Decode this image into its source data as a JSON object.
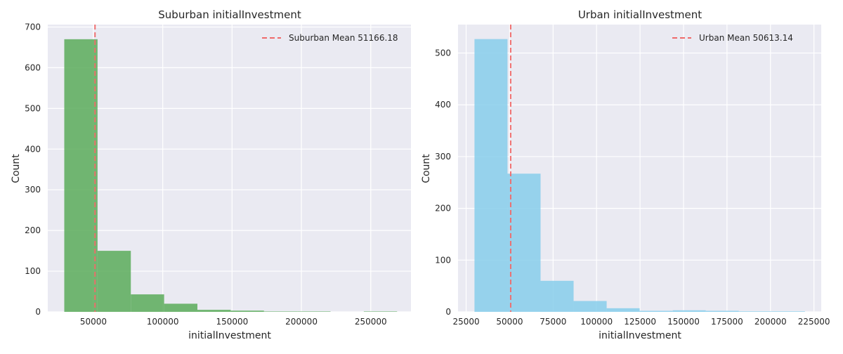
{
  "chart_data": [
    {
      "type": "bar",
      "title": "Suburban initialInvestment",
      "xlabel": "initialInvestment",
      "ylabel": "Count",
      "xlim": [
        17100,
        279000
      ],
      "ylim": [
        0,
        706
      ],
      "xticks": [
        50000,
        100000,
        150000,
        200000,
        250000
      ],
      "yticks": [
        0,
        100,
        200,
        300,
        400,
        500,
        600,
        700
      ],
      "grid": true,
      "legend_position": "top-right",
      "bar_color": "#5aac5a",
      "bins": [
        {
          "x0": 29000,
          "x1": 53000,
          "count": 670
        },
        {
          "x0": 53000,
          "x1": 77000,
          "count": 150
        },
        {
          "x0": 77000,
          "x1": 101000,
          "count": 43
        },
        {
          "x0": 101000,
          "x1": 125000,
          "count": 20
        },
        {
          "x0": 125000,
          "x1": 149000,
          "count": 5
        },
        {
          "x0": 149000,
          "x1": 173000,
          "count": 3
        },
        {
          "x0": 173000,
          "x1": 197000,
          "count": 1
        },
        {
          "x0": 197000,
          "x1": 221000,
          "count": 1
        },
        {
          "x0": 221000,
          "x1": 245000,
          "count": 0
        },
        {
          "x0": 245000,
          "x1": 269000,
          "count": 1
        }
      ],
      "mean": 51166.18,
      "mean_line_color": "#ef6a6a",
      "legend_label": "Suburban Mean 51166.18"
    },
    {
      "type": "bar",
      "title": "Urban initialInvestment",
      "xlabel": "initialInvestment",
      "ylabel": "Count",
      "xlim": [
        20340,
        229180
      ],
      "ylim": [
        0,
        555
      ],
      "xticks": [
        25000,
        50000,
        75000,
        100000,
        125000,
        150000,
        175000,
        200000,
        225000
      ],
      "yticks": [
        0,
        100,
        200,
        300,
        400,
        500
      ],
      "grid": true,
      "legend_position": "top-right",
      "bar_color": "#87ceeb",
      "bins": [
        {
          "x0": 29800,
          "x1": 48800,
          "count": 527
        },
        {
          "x0": 48800,
          "x1": 67800,
          "count": 267
        },
        {
          "x0": 67800,
          "x1": 86800,
          "count": 60
        },
        {
          "x0": 86800,
          "x1": 105800,
          "count": 21
        },
        {
          "x0": 105800,
          "x1": 124800,
          "count": 7
        },
        {
          "x0": 124800,
          "x1": 143800,
          "count": 2
        },
        {
          "x0": 143800,
          "x1": 162800,
          "count": 3
        },
        {
          "x0": 162800,
          "x1": 181800,
          "count": 2
        },
        {
          "x0": 181800,
          "x1": 200800,
          "count": 1
        },
        {
          "x0": 200800,
          "x1": 219800,
          "count": 1
        }
      ],
      "mean": 50613.14,
      "mean_line_color": "#ef6a6a",
      "legend_label": "Urban Mean 50613.14"
    }
  ]
}
